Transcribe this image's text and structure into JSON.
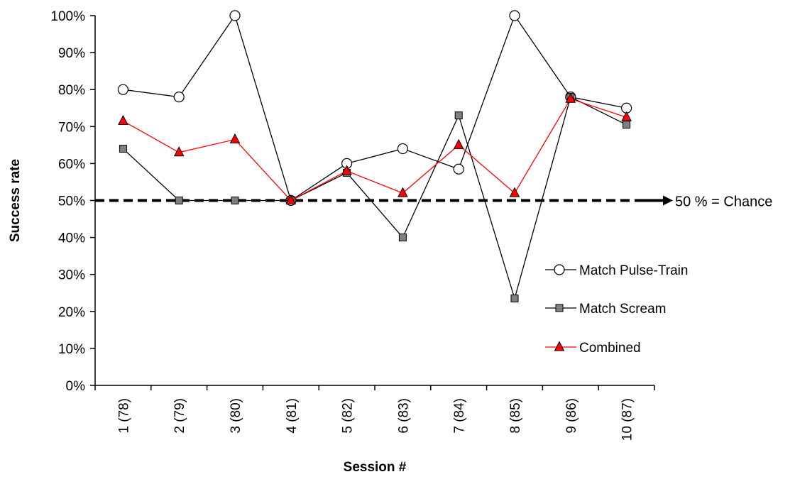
{
  "chart_data": {
    "type": "line",
    "xlabel": "Session #",
    "ylabel": "Success rate",
    "categories": [
      "1 (78)",
      "2 (79)",
      "3 (80)",
      "4 (81)",
      "5 (82)",
      "6 (83)",
      "7 (84)",
      "8 (85)",
      "9 (86)",
      "10 (87)"
    ],
    "yticks": [
      "0%",
      "10%",
      "20%",
      "30%",
      "40%",
      "50%",
      "60%",
      "70%",
      "80%",
      "90%",
      "100%"
    ],
    "ylim": [
      0,
      100
    ],
    "grid": false,
    "legend_position": "right",
    "series": [
      {
        "name": "Match Pulse-Train",
        "marker": "circle",
        "line_color": "#000000",
        "marker_fill": "#ffffff",
        "values": [
          80,
          78,
          100,
          50,
          60,
          64,
          58.5,
          100,
          78,
          75
        ]
      },
      {
        "name": "Match Scream",
        "marker": "square",
        "line_color": "#000000",
        "marker_fill": "#808080",
        "values": [
          64,
          50,
          50,
          50,
          57.5,
          40,
          73,
          23.5,
          78,
          70.5
        ]
      },
      {
        "name": "Combined",
        "marker": "triangle",
        "line_color": "#ff0000",
        "marker_fill": "#ff0000",
        "values": [
          71.5,
          63,
          66.5,
          50,
          58,
          52,
          65,
          52,
          77.5,
          72.5
        ]
      }
    ],
    "reference_line": {
      "value": 50,
      "label": "50 % = Chance",
      "style": "dashed"
    }
  }
}
